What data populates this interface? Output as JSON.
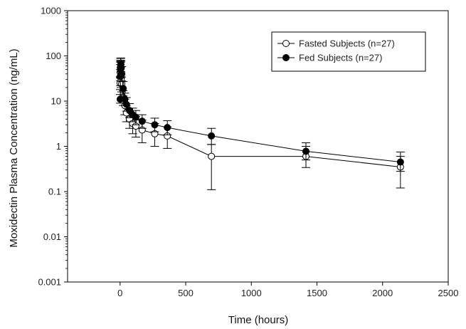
{
  "chart_data": {
    "type": "line",
    "title": "",
    "xlabel": "Time (hours)",
    "ylabel": "Moxidectin Plasma Concentration (ng/mL)",
    "xlim": [
      -400,
      2500
    ],
    "ylim": [
      0.001,
      1000
    ],
    "yscale": "log",
    "grid": false,
    "legend_position": "top-right",
    "x_ticks": [
      0,
      500,
      1000,
      1500,
      2000,
      2500
    ],
    "x_tick_labels": [
      "0",
      "500",
      "1000",
      "1500",
      "2000",
      "2500"
    ],
    "y_ticks": [
      0.001,
      0.01,
      0.1,
      1,
      10,
      100,
      1000
    ],
    "y_tick_labels": [
      "0.001",
      "0.01",
      "0.1",
      "1",
      "10",
      "100",
      "1000"
    ],
    "series": [
      {
        "name": "Fasted Subjects (n=27)",
        "marker": "open-circle",
        "color": "#000000",
        "points": [
          {
            "x": 1,
            "y": 25,
            "err_low": 18,
            "err_high": 34
          },
          {
            "x": 2,
            "y": 45,
            "err_low": 28,
            "err_high": 65
          },
          {
            "x": 3,
            "y": 55,
            "err_low": 35,
            "err_high": 80
          },
          {
            "x": 4,
            "y": 50,
            "err_low": 32,
            "err_high": 72
          },
          {
            "x": 6,
            "y": 38,
            "err_low": 25,
            "err_high": 55
          },
          {
            "x": 8,
            "y": 30,
            "err_low": 20,
            "err_high": 42
          },
          {
            "x": 12,
            "y": 24,
            "err_low": 16,
            "err_high": 34
          },
          {
            "x": 24,
            "y": 12,
            "err_low": 8,
            "err_high": 17
          },
          {
            "x": 36,
            "y": 8,
            "err_low": 5,
            "err_high": 11
          },
          {
            "x": 48,
            "y": 5.5,
            "err_low": 3.5,
            "err_high": 8
          },
          {
            "x": 72,
            "y": 4,
            "err_low": 2.5,
            "err_high": 6
          },
          {
            "x": 96,
            "y": 3.2,
            "err_low": 1.9,
            "err_high": 5.2
          },
          {
            "x": 120,
            "y": 2.8,
            "err_low": 1.6,
            "err_high": 4.6
          },
          {
            "x": 168,
            "y": 2.3,
            "err_low": 1.2,
            "err_high": 3.8
          },
          {
            "x": 264,
            "y": 1.9,
            "err_low": 1.0,
            "err_high": 3.2
          },
          {
            "x": 360,
            "y": 1.7,
            "err_low": 0.9,
            "err_high": 2.7
          },
          {
            "x": 696,
            "y": 0.6,
            "err_low": 0.11,
            "err_high": 1.1
          },
          {
            "x": 1416,
            "y": 0.6,
            "err_low": 0.34,
            "err_high": 1.0
          },
          {
            "x": 2136,
            "y": 0.35,
            "err_low": 0.12,
            "err_high": 0.6
          }
        ]
      },
      {
        "name": "Fed Subjects (n=27)",
        "marker": "filled-circle",
        "color": "#000000",
        "points": [
          {
            "x": 1,
            "y": 11,
            "err_low": 9,
            "err_high": 14
          },
          {
            "x": 2,
            "y": 35,
            "err_low": 22,
            "err_high": 50
          },
          {
            "x": 3,
            "y": 50,
            "err_low": 33,
            "err_high": 75
          },
          {
            "x": 4,
            "y": 62,
            "err_low": 42,
            "err_high": 88
          },
          {
            "x": 6,
            "y": 65,
            "err_low": 45,
            "err_high": 90
          },
          {
            "x": 8,
            "y": 55,
            "err_low": 38,
            "err_high": 78
          },
          {
            "x": 12,
            "y": 40,
            "err_low": 28,
            "err_high": 58
          },
          {
            "x": 24,
            "y": 19,
            "err_low": 13,
            "err_high": 27
          },
          {
            "x": 36,
            "y": 11,
            "err_low": 8,
            "err_high": 15
          },
          {
            "x": 48,
            "y": 8.5,
            "err_low": 6,
            "err_high": 12
          },
          {
            "x": 72,
            "y": 6.2,
            "err_low": 4.3,
            "err_high": 8.8
          },
          {
            "x": 96,
            "y": 5,
            "err_low": 3.5,
            "err_high": 7
          },
          {
            "x": 120,
            "y": 4.4,
            "err_low": 3.0,
            "err_high": 6.2
          },
          {
            "x": 168,
            "y": 3.6,
            "err_low": 2.5,
            "err_high": 5.0
          },
          {
            "x": 264,
            "y": 3.0,
            "err_low": 2.1,
            "err_high": 4.2
          },
          {
            "x": 360,
            "y": 2.6,
            "err_low": 1.8,
            "err_high": 3.7
          },
          {
            "x": 696,
            "y": 1.7,
            "err_low": 1.1,
            "err_high": 2.5
          },
          {
            "x": 1416,
            "y": 0.78,
            "err_low": 0.5,
            "err_high": 1.2
          },
          {
            "x": 2136,
            "y": 0.45,
            "err_low": 0.28,
            "err_high": 0.75
          }
        ]
      }
    ]
  }
}
